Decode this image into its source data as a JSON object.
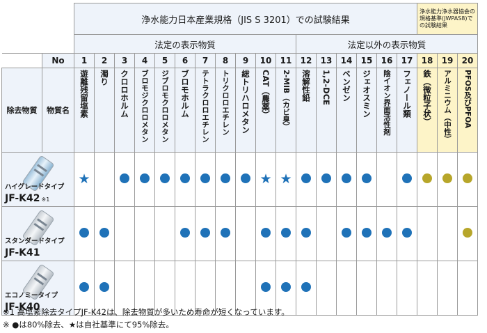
{
  "header": {
    "main_title": "浄水能力日本産業規格（JIS S 3201）での試験結果",
    "side_title": "浄水能力浄水器協会の規格基準(JWPAS8)での試験結果",
    "legal_title": "法定の表示物質",
    "nonlegal_title": "法定以外の表示物質",
    "no_label": "No",
    "removed_label": "除去物質",
    "substance_label": "物質名"
  },
  "substances": [
    {
      "no": "1",
      "name": "遊離残留塩素"
    },
    {
      "no": "2",
      "name": "濁り"
    },
    {
      "no": "3",
      "name": "クロロホルム"
    },
    {
      "no": "4",
      "name": "ブロモジクロロメタン"
    },
    {
      "no": "5",
      "name": "ジブロモクロロメタン"
    },
    {
      "no": "6",
      "name": "ブロモホルム"
    },
    {
      "no": "7",
      "name": "テトラクロロエチレン"
    },
    {
      "no": "8",
      "name": "トリクロロエチレン"
    },
    {
      "no": "9",
      "name": "総トリハロメタン"
    },
    {
      "no": "10",
      "name": "CAT（農薬）"
    },
    {
      "no": "11",
      "name": "2-MIB（カビ臭）"
    },
    {
      "no": "12",
      "name": "溶解性鉛"
    },
    {
      "no": "13",
      "name": "1,2-DCE"
    },
    {
      "no": "14",
      "name": "ベンゼン"
    },
    {
      "no": "15",
      "name": "ジェオスミン"
    },
    {
      "no": "16",
      "name": "陰イオン界面活性剤"
    },
    {
      "no": "17",
      "name": "フェノール類"
    },
    {
      "no": "18",
      "name": "鉄（微粒子状）"
    },
    {
      "no": "19",
      "name": "アルミニウム（中性）"
    },
    {
      "no": "20",
      "name": "PFOS及びPFOA"
    }
  ],
  "products": [
    {
      "name": "ハイグレードタイプ",
      "code": "JF-K42",
      "note": "※1",
      "marks": [
        "star",
        "",
        "dot",
        "dot",
        "dot",
        "dot",
        "dot",
        "dot",
        "dot",
        "star",
        "star",
        "dot",
        "dot",
        "dot",
        "dot",
        "",
        "dot",
        "ydot",
        "ydot",
        "ydot"
      ]
    },
    {
      "name": "スタンダードタイプ",
      "code": "JF-K41",
      "note": "",
      "marks": [
        "dot",
        "dot",
        "",
        "",
        "",
        "dot",
        "dot",
        "dot",
        "",
        "dot",
        "dot",
        "dot",
        "",
        "dot",
        "dot",
        "dot",
        "dot",
        "",
        "",
        "ydot"
      ]
    },
    {
      "name": "エコノミータイプ",
      "code": "JF-K40",
      "note": "",
      "marks": [
        "dot",
        "dot",
        "",
        "",
        "",
        "",
        "",
        "",
        "",
        "dot",
        "dot",
        "dot",
        "",
        "",
        "",
        "",
        "",
        "",
        "",
        ""
      ]
    }
  ],
  "footnotes": {
    "note1": "※1 高塩素除去タイプJF-K42は、除去物質が多いため寿命が短くなっています。",
    "note2": "※ ●は80%除去、★は自社基準にて95%除去。"
  },
  "colors": {
    "dot": "#1f72b8",
    "yellow_dot": "#b7a62a",
    "header_bg": "#eef3fa",
    "yellow_bg": "#fdf4c8"
  }
}
